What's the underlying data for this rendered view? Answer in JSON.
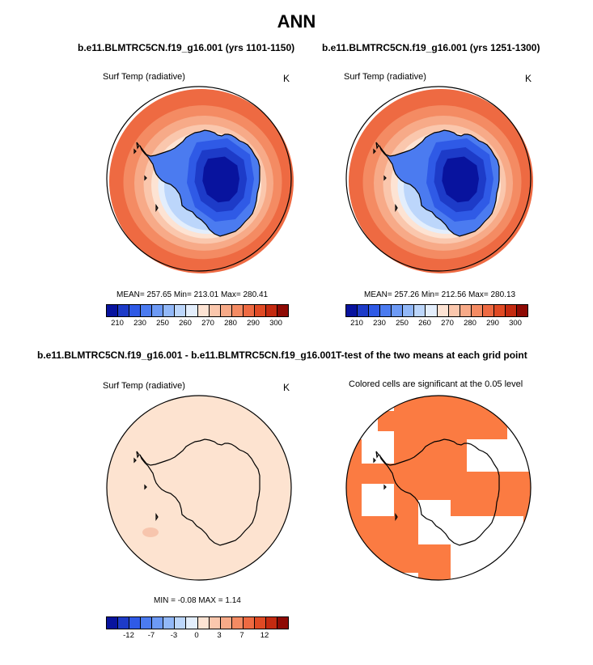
{
  "title": "ANN",
  "panels": [
    {
      "case_title": "b.e11.BLMTRC5CN.f19_g16.001 (yrs 1101-1150)",
      "variable": "Surf Temp (radiative)",
      "units": "K",
      "stats": "MEAN= 257.65  Min= 213.01  Max= 280.41",
      "colorbar_ticks": [
        "210",
        "230",
        "250",
        "260",
        "270",
        "280",
        "290",
        "300"
      ]
    },
    {
      "case_title": "b.e11.BLMTRC5CN.f19_g16.001 (yrs 1251-1300)",
      "variable": "Surf Temp (radiative)",
      "units": "K",
      "stats": "MEAN= 257.26  Min= 212.56  Max= 280.13",
      "colorbar_ticks": [
        "210",
        "230",
        "250",
        "260",
        "270",
        "280",
        "290",
        "300"
      ]
    },
    {
      "case_title": "b.e11.BLMTRC5CN.f19_g16.001 - b.e11.BLMTRC5CN.f19_g16.001",
      "variable": "Surf Temp (radiative)",
      "units": "K",
      "stats": "MIN =  -0.08 MAX =   1.14",
      "colorbar_ticks": [
        "-12",
        "-7",
        "-3",
        "0",
        "3",
        "7",
        "12"
      ]
    },
    {
      "case_title": "T-test of the two means at each grid point",
      "subtitle": "Colored cells are significant at the 0.05 level"
    }
  ],
  "colors": {
    "temp_scale": [
      "#08139e",
      "#1d3bc8",
      "#2f5ae6",
      "#4b7bf0",
      "#6d9af5",
      "#92b8f8",
      "#bcd6fb",
      "#e3eefc",
      "#fde3d3",
      "#fac7ad",
      "#f7aa88",
      "#f48b63",
      "#ee6a42",
      "#e04a24",
      "#c42a10",
      "#8e0a04"
    ],
    "diff_scale": [
      "#08139e",
      "#1d3bc8",
      "#2f5ae6",
      "#4b7bf0",
      "#6d9af5",
      "#92b8f8",
      "#bcd6fb",
      "#e3eefc",
      "#fde3d3",
      "#fac7ad",
      "#f7aa88",
      "#f48b63",
      "#ee6a42",
      "#e04a24",
      "#c42a10",
      "#8e0a04"
    ],
    "significant": "#fb7b42",
    "diff_fill": "#fde3d0"
  }
}
